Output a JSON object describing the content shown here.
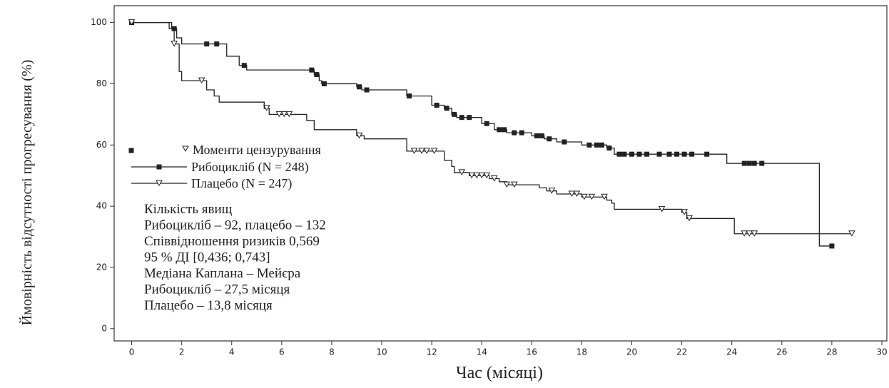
{
  "chart_data": {
    "type": "kaplan-meier",
    "y_label": "Ймовірність відсутності прогресування (%)",
    "x_label": "Час (місяці)",
    "xlim": [
      -0.7,
      30.2
    ],
    "ylim": [
      -4,
      105.5
    ],
    "xticks": [
      0,
      2,
      4,
      6,
      8,
      10,
      12,
      14,
      16,
      18,
      20,
      22,
      24,
      26,
      28,
      30
    ],
    "yticks": [
      0,
      20,
      40,
      60,
      80,
      100
    ],
    "censor_legend": "Моменти цензурування",
    "series": [
      {
        "name": "Рибоцикліб (N = 248)",
        "color": "#222222",
        "marker": "square",
        "x": [
          0,
          1.5,
          1.8,
          2.0,
          3.8,
          4.3,
          4.6,
          7.3,
          7.5,
          7.6,
          9.0,
          9.2,
          11.0,
          12.0,
          12.5,
          12.8,
          13.0,
          14.0,
          14.5,
          15.0,
          16.0,
          16.5,
          17.0,
          18.0,
          19.0,
          19.3,
          23.8,
          27.5
        ],
        "values": [
          100,
          98,
          95,
          93,
          89,
          86,
          84.5,
          83,
          81,
          80,
          79,
          78,
          76,
          73,
          72,
          70,
          69,
          67,
          65,
          64,
          63,
          62,
          61,
          60,
          59,
          57,
          54,
          27
        ],
        "censor_x": [
          0,
          1.7,
          3.0,
          3.4,
          4.5,
          7.2,
          7.4,
          7.7,
          9.1,
          9.4,
          11.1,
          12.2,
          12.6,
          12.9,
          13.2,
          13.5,
          14.2,
          14.7,
          14.9,
          15.3,
          15.6,
          16.2,
          16.4,
          16.7,
          17.3,
          18.3,
          18.6,
          18.8,
          19.1,
          19.5,
          19.7,
          20.0,
          20.3,
          20.6,
          21.1,
          21.5,
          21.8,
          22.1,
          22.4,
          23.0,
          24.5,
          24.7,
          24.9,
          25.2,
          28.0
        ],
        "censor_values": [
          100,
          98,
          93,
          93,
          86,
          84.5,
          83,
          80,
          79,
          78,
          76,
          73,
          72,
          70,
          69,
          69,
          67,
          65,
          65,
          64,
          64,
          63,
          63,
          62,
          61,
          60,
          60,
          60,
          59,
          57,
          57,
          57,
          57,
          57,
          57,
          57,
          57,
          57,
          57,
          57,
          54,
          54,
          54,
          54,
          27
        ]
      },
      {
        "name": "Плацебо (N = 247)",
        "color": "#222222",
        "marker": "triangle",
        "x": [
          0,
          1.6,
          1.7,
          1.9,
          2.0,
          3.0,
          3.3,
          3.5,
          5.3,
          5.5,
          7.0,
          7.3,
          9.0,
          9.3,
          11.0,
          12.5,
          12.8,
          12.9,
          13.5,
          14.3,
          14.7,
          15.0,
          16.3,
          16.6,
          17.0,
          18.0,
          19.0,
          19.2,
          19.3,
          22.0,
          22.2,
          24.1
        ],
        "values": [
          100,
          98,
          93,
          84,
          81,
          78,
          76,
          74,
          72,
          70,
          68,
          65,
          63,
          62,
          58,
          55,
          53,
          51,
          50,
          49,
          48,
          47,
          46,
          45,
          44,
          43,
          42,
          41,
          39,
          38,
          36,
          31
        ],
        "censor_x": [
          0,
          1.7,
          2.8,
          5.4,
          5.9,
          6.1,
          6.3,
          9.1,
          11.3,
          11.6,
          11.8,
          12.1,
          13.2,
          13.6,
          13.8,
          14.0,
          14.2,
          14.5,
          15.0,
          15.3,
          16.8,
          17.6,
          17.8,
          18.1,
          18.4,
          18.9,
          21.2,
          22.1,
          22.3,
          24.5,
          24.7,
          24.9,
          28.8
        ],
        "censor_values": [
          100,
          93,
          81,
          72,
          70,
          70,
          70,
          63,
          58,
          58,
          58,
          58,
          51,
          50,
          50,
          50,
          50,
          49,
          47,
          47,
          45,
          44,
          44,
          43,
          43,
          43,
          39,
          38,
          36,
          31,
          31,
          31,
          31
        ]
      }
    ],
    "annotations": [
      "Кількість явищ",
      "Рибоцикліб – 92, плацебо – 132",
      "Співвідношення ризиків 0,569",
      "95 % ДІ [0,436; 0,743]",
      "Медіана Каплана – Мейєра",
      "Рибоцикліб – 27,5 місяця",
      "Плацебо – 13,8 місяця"
    ]
  }
}
